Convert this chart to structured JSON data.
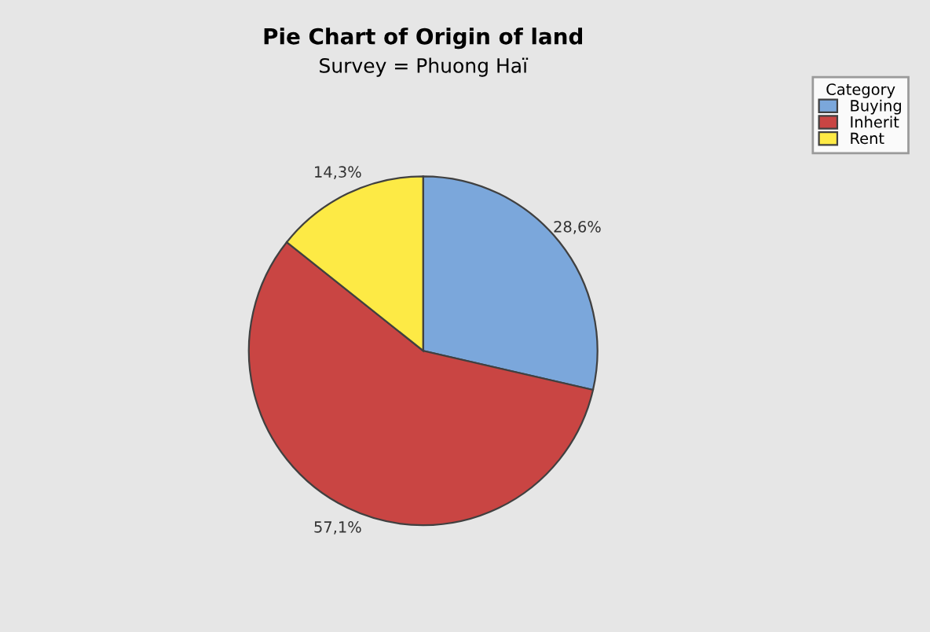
{
  "chart_data": {
    "type": "pie",
    "title": "Pie Chart of Origin of land",
    "subtitle": "Survey = Phuong Haï",
    "categories": [
      "Buying",
      "Inherit",
      "Rent"
    ],
    "values": [
      28.6,
      57.1,
      14.3
    ],
    "value_labels": [
      "28,6%",
      "57,1%",
      "14,3%"
    ],
    "colors": [
      "#7ba7db",
      "#c94543",
      "#fdea45"
    ],
    "legend_title": "Category",
    "legend": "top right"
  }
}
